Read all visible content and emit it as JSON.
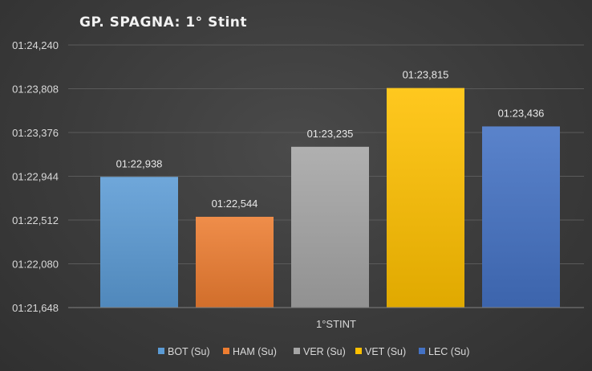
{
  "chart_data": {
    "type": "bar",
    "title": "GP. SPAGNA: 1° Stint",
    "categories": [
      "1°STINT"
    ],
    "series": [
      {
        "name": "BOT (Su)",
        "value": 82.938,
        "label": "01:22,938",
        "color": "#5b9bd5"
      },
      {
        "name": "HAM (Su)",
        "value": 82.544,
        "label": "01:22,544",
        "color": "#ed7d31"
      },
      {
        "name": "VER (Su)",
        "value": 83.235,
        "label": "01:23,235",
        "color": "#a5a5a5"
      },
      {
        "name": "VET (Su)",
        "value": 83.815,
        "label": "01:23,815",
        "color": "#ffc000"
      },
      {
        "name": "LEC (Su)",
        "value": 83.436,
        "label": "01:23,436",
        "color": "#4472c4"
      }
    ],
    "y_ticks": [
      {
        "value": 81.648,
        "label": "01:21,648"
      },
      {
        "value": 82.08,
        "label": "01:22,080"
      },
      {
        "value": 82.512,
        "label": "01:22,512"
      },
      {
        "value": 82.944,
        "label": "01:22,944"
      },
      {
        "value": 83.376,
        "label": "01:23,376"
      },
      {
        "value": 83.808,
        "label": "01:23,808"
      },
      {
        "value": 84.24,
        "label": "01:24,240"
      }
    ],
    "ylim": [
      81.648,
      84.24
    ],
    "grid": true,
    "legend_position": "bottom"
  }
}
